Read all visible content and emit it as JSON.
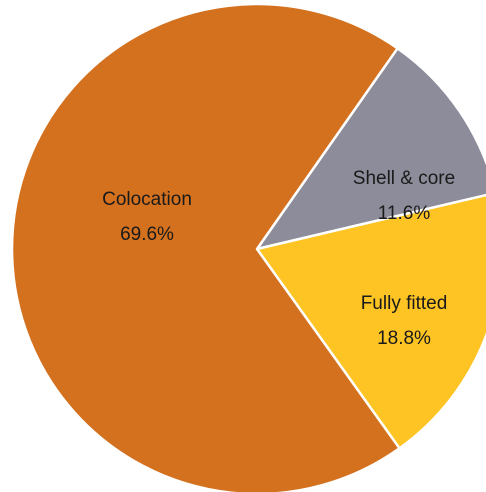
{
  "chart_data": {
    "type": "pie",
    "title": "",
    "slices": [
      {
        "label": "Shell & core",
        "value": 11.6,
        "display": "11.6%",
        "color": "#8c8c9a"
      },
      {
        "label": "Fully fitted",
        "value": 18.8,
        "display": "18.8%",
        "color": "#fdc424"
      },
      {
        "label": "Colocation",
        "value": 69.6,
        "display": "69.6%",
        "color": "#d4711f"
      }
    ],
    "start_direction": "from about 1 o'clock, clockwise",
    "legend": "none (labels on slices)",
    "slice_border_color": "#ffffff"
  }
}
